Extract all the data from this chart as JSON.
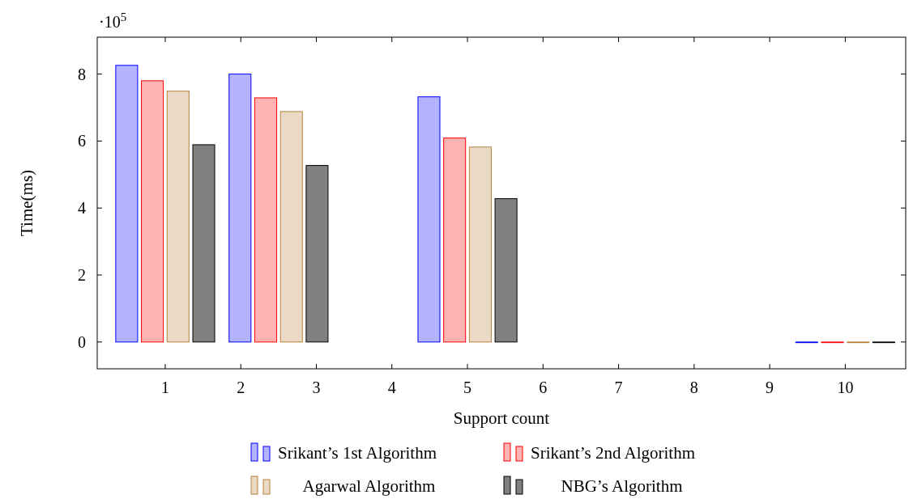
{
  "chart_data": {
    "type": "bar",
    "xlabel": "Support count",
    "ylabel": "Time(ms)",
    "annotations": [
      "·10$^{5}$"
    ],
    "x": [
      1,
      2.5,
      5,
      10
    ],
    "series": [
      {
        "name": "Srikant’s 1st Algorithm",
        "color": "#b3b3ff",
        "values": [
          8.26,
          8.0,
          7.32,
          0
        ]
      },
      {
        "name": "Srikant’s 2nd Algorithm",
        "color": "#ffb3b3",
        "values": [
          7.8,
          7.29,
          6.09,
          0
        ]
      },
      {
        "name": "Agarwal Algorithm",
        "color": "#ead9c4",
        "values": [
          7.49,
          6.88,
          5.82,
          0
        ]
      },
      {
        "name": "NBG’s Algorithm",
        "color": "#808080",
        "values": [
          5.89,
          5.27,
          4.28,
          0
        ]
      }
    ],
    "xlim": [
      0.1,
      10.8
    ],
    "xticks": [
      1,
      2,
      3,
      4,
      5,
      6,
      7,
      8,
      9,
      10
    ],
    "ylim": [
      -0.8,
      9.1
    ],
    "yticks": [
      0,
      2,
      4,
      6,
      8
    ],
    "legend": "bottom"
  }
}
